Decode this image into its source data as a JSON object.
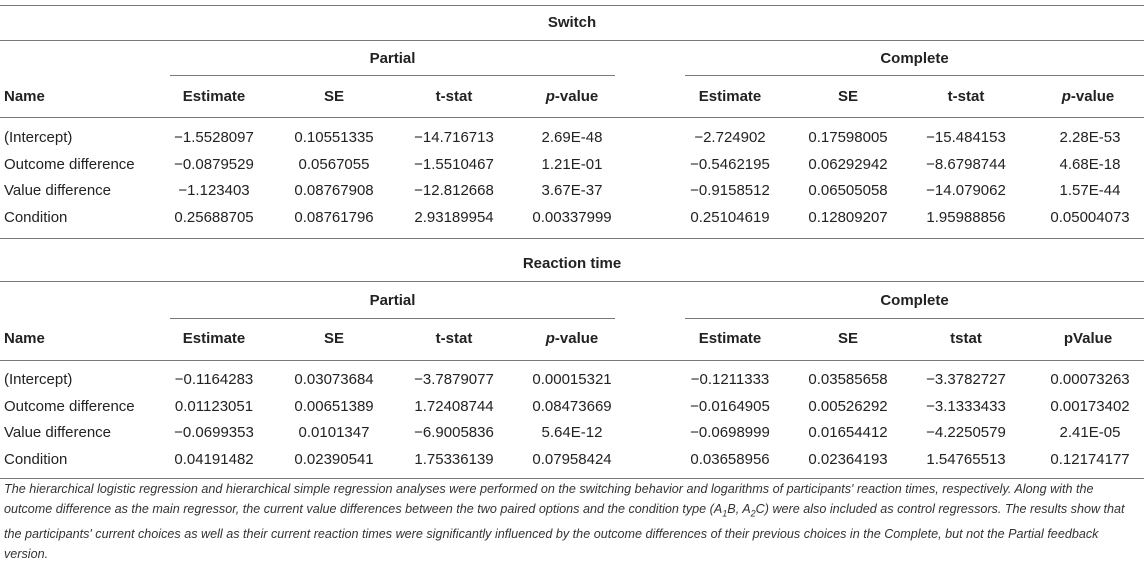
{
  "sections": [
    {
      "title": "Switch",
      "groups": [
        "Partial",
        "Complete"
      ],
      "headers": [
        "Name",
        "Estimate",
        "SE",
        "t-stat",
        "p-value",
        "Estimate",
        "SE",
        "t-stat",
        "p-value"
      ],
      "rows": [
        [
          "(Intercept)",
          "−1.5528097",
          "0.10551335",
          "−14.716713",
          "2.69E-48",
          "−2.724902",
          "0.17598005",
          "−15.484153",
          "2.28E-53"
        ],
        [
          "Outcome difference",
          "−0.0879529",
          "0.0567055",
          "−1.5510467",
          "1.21E-01",
          "−0.5462195",
          "0.06292942",
          "−8.6798744",
          "4.68E-18"
        ],
        [
          "Value difference",
          "−1.123403",
          "0.08767908",
          "−12.812668",
          "3.67E-37",
          "−0.9158512",
          "0.06505058",
          "−14.079062",
          "1.57E-44"
        ],
        [
          "Condition",
          "0.25688705",
          "0.08761796",
          "2.93189954",
          "0.00337999",
          "0.25104619",
          "0.12809207",
          "1.95988856",
          "0.05004073"
        ]
      ]
    },
    {
      "title": "Reaction time",
      "groups": [
        "Partial",
        "Complete"
      ],
      "headers": [
        "Name",
        "Estimate",
        "SE",
        "t-stat",
        "p-value",
        "Estimate",
        "SE",
        "tstat",
        "pValue"
      ],
      "rows": [
        [
          "(Intercept)",
          "−0.1164283",
          "0.03073684",
          "−3.7879077",
          "0.00015321",
          "−0.1211333",
          "0.03585658",
          "−3.3782727",
          "0.00073263"
        ],
        [
          "Outcome difference",
          "0.01123051",
          "0.00651389",
          "1.72408744",
          "0.08473669",
          "−0.0164905",
          "0.00526292",
          "−3.1333433",
          "0.00173402"
        ],
        [
          "Value difference",
          "−0.0699353",
          "0.0101347",
          "−6.9005836",
          "5.64E-12",
          "−0.0698999",
          "0.01654412",
          "−4.2250579",
          "2.41E-05"
        ],
        [
          "Condition",
          "0.04191482",
          "0.02390541",
          "1.75336139",
          "0.07958424",
          "0.03658956",
          "0.02364193",
          "1.54765513",
          "0.12174177"
        ]
      ]
    }
  ],
  "footnote": {
    "part1": "The hierarchical logistic regression and hierarchical simple regression analyses were performed on the switching behavior and logarithms of participants' reaction times, respectively. Along with the outcome difference as the main regressor, the current value differences between the two paired options and the condition type (",
    "cond1": "A",
    "cond1_sub": "1",
    "cond1_tail": "B, A",
    "cond2_sub": "2",
    "cond2_tail": "C",
    "part2": ") were also included as control regressors. The results show that the participants' current choices as well as their current reaction times were significantly influenced by the outcome differences of their previous choices in the Complete, but not the Partial feedback version."
  }
}
